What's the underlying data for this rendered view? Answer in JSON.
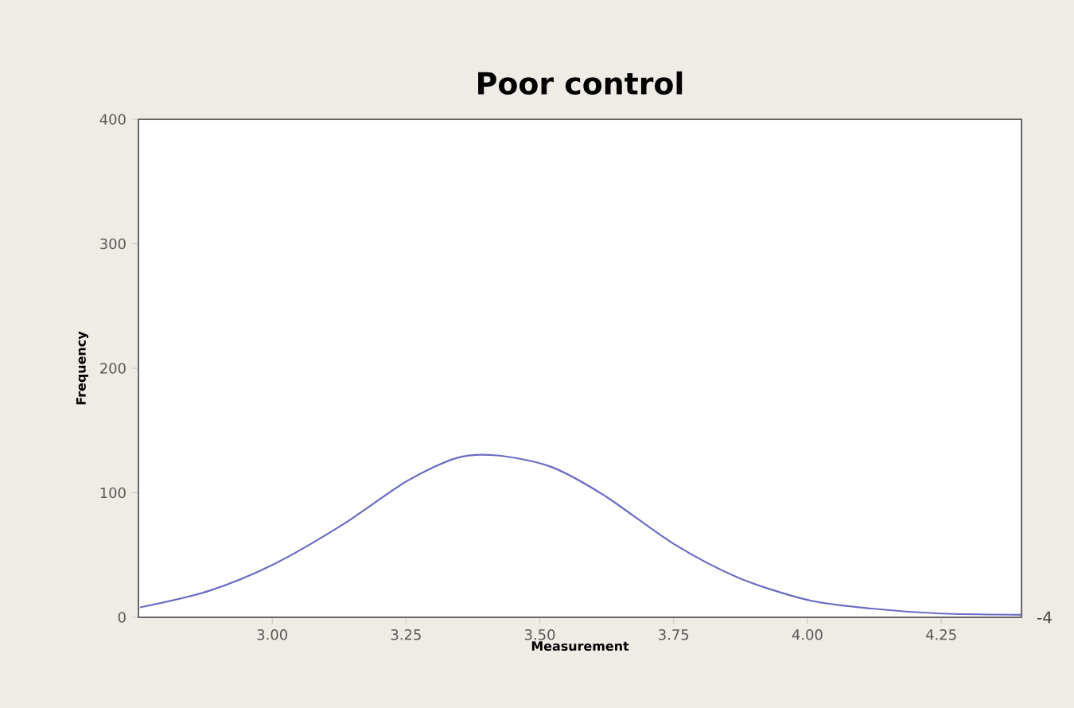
{
  "chart_data": {
    "type": "line",
    "title": "Poor control",
    "xlabel": "Measurement",
    "ylabel": "Frequency",
    "x": [
      2.753,
      2.88,
      3.0,
      3.13,
      3.25,
      3.345,
      3.42,
      3.52,
      3.62,
      3.75,
      3.87,
      4.0,
      4.12,
      4.25,
      4.4
    ],
    "series": [
      {
        "color": "#6b6bc4",
        "values": [
          8,
          21,
          42,
          74,
          109,
          128,
          130,
          121,
          98,
          59,
          32,
          14,
          7,
          3,
          2
        ]
      }
    ],
    "xlim": [
      2.75,
      4.4
    ],
    "ylim": [
      0,
      400
    ],
    "xticks": [
      {
        "value": 3.0,
        "label": "3.00"
      },
      {
        "value": 3.25,
        "label": "3.25"
      },
      {
        "value": 3.5,
        "label": "3.50"
      },
      {
        "value": 3.75,
        "label": "3.75"
      },
      {
        "value": 4.0,
        "label": "4.00"
      },
      {
        "value": 4.25,
        "label": "4.25"
      }
    ],
    "yticks": [
      0,
      100,
      200,
      300,
      400
    ],
    "grid": false,
    "marker": "none",
    "line_style": "solid",
    "annotations": [
      "-4"
    ]
  }
}
